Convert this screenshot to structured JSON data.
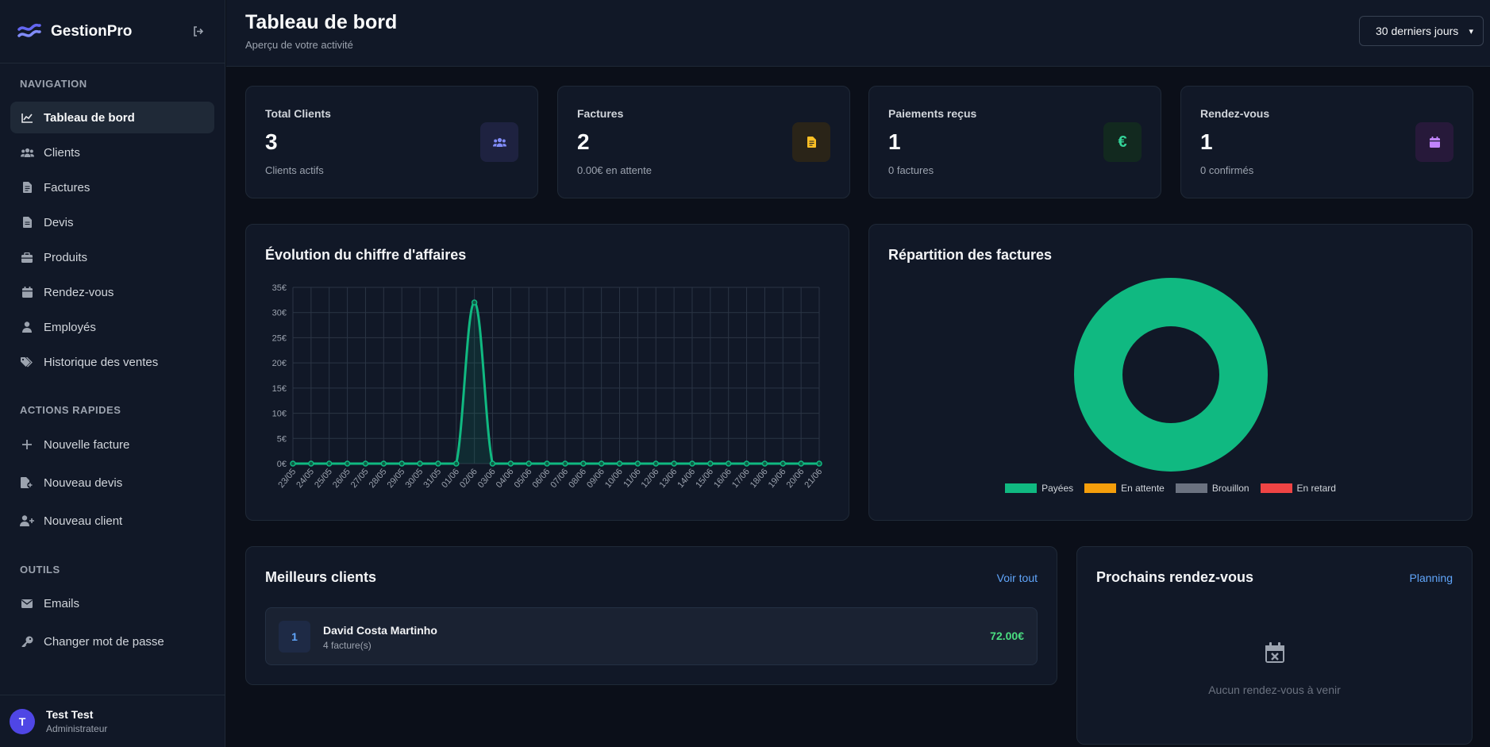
{
  "app": {
    "name": "GestionPro"
  },
  "sidebar": {
    "nav_title": "NAVIGATION",
    "nav_items": [
      {
        "label": "Tableau de bord",
        "icon": "chart-line-icon",
        "active": true
      },
      {
        "label": "Clients",
        "icon": "users-icon"
      },
      {
        "label": "Factures",
        "icon": "invoice-icon"
      },
      {
        "label": "Devis",
        "icon": "quote-icon"
      },
      {
        "label": "Produits",
        "icon": "box-icon"
      },
      {
        "label": "Rendez-vous",
        "icon": "calendar-icon"
      },
      {
        "label": "Employés",
        "icon": "user-icon"
      },
      {
        "label": "Historique des ventes",
        "icon": "tags-icon"
      }
    ],
    "quick_title": "ACTIONS RAPIDES",
    "quick_items": [
      {
        "label": "Nouvelle facture",
        "icon": "plus-icon"
      },
      {
        "label": "Nouveau devis",
        "icon": "file-plus-icon"
      },
      {
        "label": "Nouveau client",
        "icon": "user-plus-icon"
      }
    ],
    "tools_title": "OUTILS",
    "tools_items": [
      {
        "label": "Emails",
        "icon": "envelope-icon"
      },
      {
        "label": "Changer mot de passe",
        "icon": "key-icon"
      }
    ],
    "user": {
      "initial": "T",
      "name": "Test Test",
      "role": "Administrateur"
    }
  },
  "header": {
    "title": "Tableau de bord",
    "subtitle": "Aperçu de votre activité",
    "period": "30 derniers jours"
  },
  "stats": [
    {
      "label": "Total Clients",
      "value": "3",
      "sub": "Clients actifs",
      "icon": "users-icon",
      "color": "#818cf8",
      "bg": "#1e2240"
    },
    {
      "label": "Factures",
      "value": "2",
      "sub": "0.00€ en attente",
      "icon": "invoice-icon",
      "color": "#fbbf24",
      "bg": "#2a2418"
    },
    {
      "label": "Paiements reçus",
      "value": "1",
      "sub": "0 factures",
      "icon": "euro-icon",
      "color": "#34d399",
      "bg": "#12291f"
    },
    {
      "label": "Rendez-vous",
      "value": "1",
      "sub": "0 confirmés",
      "icon": "calendar-icon",
      "color": "#c084fc",
      "bg": "#27193a"
    }
  ],
  "revenue_chart": {
    "title": "Évolution du chiffre d'affaires",
    "chart_data": {
      "type": "line",
      "x": [
        "23/05",
        "24/05",
        "25/05",
        "26/05",
        "27/05",
        "28/05",
        "29/05",
        "30/05",
        "31/05",
        "01/06",
        "02/06",
        "03/06",
        "04/06",
        "05/06",
        "06/06",
        "07/06",
        "08/06",
        "09/06",
        "10/06",
        "11/06",
        "12/06",
        "13/06",
        "14/06",
        "15/06",
        "16/06",
        "17/06",
        "18/06",
        "19/06",
        "20/06",
        "21/06"
      ],
      "series": [
        {
          "values": [
            0,
            0,
            0,
            0,
            0,
            0,
            0,
            0,
            0,
            0,
            32,
            0,
            0,
            0,
            0,
            0,
            0,
            0,
            0,
            0,
            0,
            0,
            0,
            0,
            0,
            0,
            0,
            0,
            0,
            0
          ]
        }
      ],
      "ylim": [
        0,
        35
      ],
      "yticks": [
        "0€",
        "5€",
        "10€",
        "15€",
        "20€",
        "25€",
        "30€",
        "35€"
      ],
      "grid": true,
      "color": "#10b981"
    }
  },
  "invoice_chart": {
    "title": "Répartition des factures",
    "chart_data": {
      "type": "pie",
      "categories": [
        "Payées",
        "En attente",
        "Brouillon",
        "En retard"
      ],
      "values": [
        1,
        0,
        0,
        0
      ],
      "colors": [
        "#10b981",
        "#f59e0b",
        "#6b7280",
        "#ef4444"
      ],
      "donut": true,
      "legend": "bottom"
    }
  },
  "top_clients": {
    "title": "Meilleurs clients",
    "link": "Voir tout",
    "items": [
      {
        "rank": "1",
        "name": "David Costa Martinho",
        "sub": "4 facture(s)",
        "amount": "72.00€"
      }
    ]
  },
  "appointments": {
    "title": "Prochains rendez-vous",
    "link": "Planning",
    "empty": "Aucun rendez-vous à venir",
    "empty_icon": "calendar-x-icon"
  }
}
